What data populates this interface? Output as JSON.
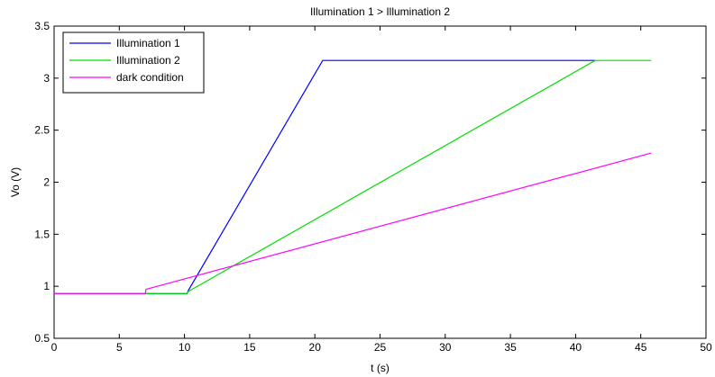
{
  "chart_data": {
    "type": "line",
    "title": "Illumination 1 > Illumination 2",
    "xlabel": "t (s)",
    "ylabel": "Vo (V)",
    "xlim": [
      0,
      50
    ],
    "ylim": [
      0.5,
      3.5
    ],
    "xticks": [
      0,
      5,
      10,
      15,
      20,
      25,
      30,
      35,
      40,
      45,
      50
    ],
    "yticks": [
      0.5,
      1,
      1.5,
      2,
      2.5,
      3,
      3.5
    ],
    "grid": false,
    "legend_position": "top-left",
    "series": [
      {
        "name": "Illumination 1",
        "color": "#0000ff",
        "x": [
          0,
          10.2,
          10.3,
          20.6,
          41.5
        ],
        "y": [
          0.93,
          0.93,
          0.96,
          3.17,
          3.17
        ]
      },
      {
        "name": "Illumination 2",
        "color": "#00dd00",
        "x": [
          0,
          10.2,
          10.3,
          41.5,
          45.8
        ],
        "y": [
          0.93,
          0.93,
          0.95,
          3.17,
          3.17
        ]
      },
      {
        "name": "dark condition",
        "color": "#ff00ff",
        "x": [
          0,
          7.0,
          7.05,
          45.8
        ],
        "y": [
          0.93,
          0.93,
          0.97,
          2.28
        ]
      }
    ]
  }
}
